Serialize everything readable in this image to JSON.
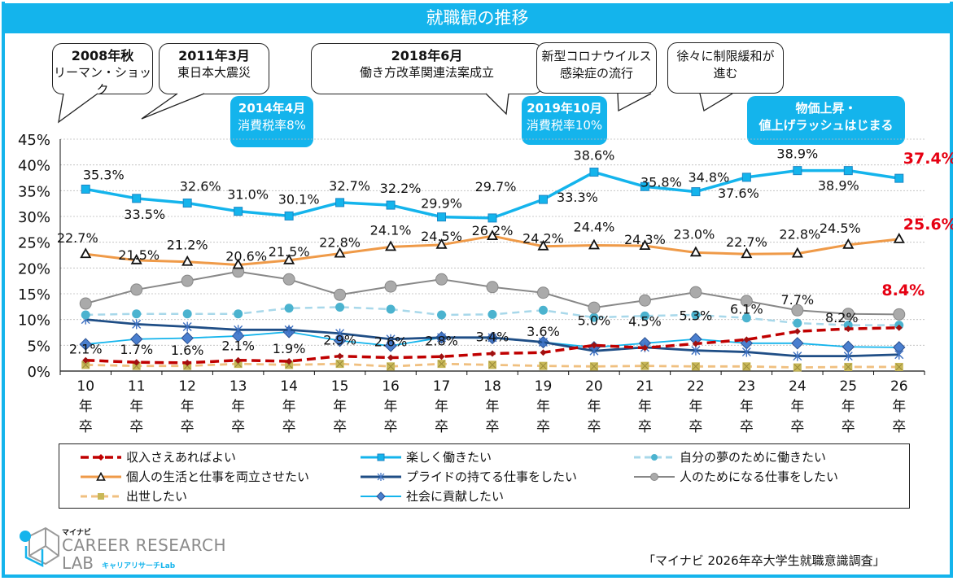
{
  "chart_data": {
    "type": "line",
    "title": "就職観の推移",
    "xlabel": "",
    "ylabel": "",
    "ylim": [
      0,
      45
    ],
    "yticks": [
      "0%",
      "5%",
      "10%",
      "15%",
      "20%",
      "25%",
      "30%",
      "35%",
      "40%",
      "45%"
    ],
    "grid": true,
    "legend_position": "bottom",
    "categories": [
      "10年卒",
      "11年卒",
      "12年卒",
      "13年卒",
      "14年卒",
      "15年卒",
      "16年卒",
      "17年卒",
      "18年卒",
      "19年卒",
      "20年卒",
      "21年卒",
      "22年卒",
      "23年卒",
      "24年卒",
      "25年卒",
      "26年卒"
    ],
    "category_lines": [
      [
        "10",
        "年",
        "卒"
      ],
      [
        "11",
        "年",
        "卒"
      ],
      [
        "12",
        "年",
        "卒"
      ],
      [
        "13",
        "年",
        "卒"
      ],
      [
        "14",
        "年",
        "卒"
      ],
      [
        "15",
        "年",
        "卒"
      ],
      [
        "16",
        "年",
        "卒"
      ],
      [
        "17",
        "年",
        "卒"
      ],
      [
        "18",
        "年",
        "卒"
      ],
      [
        "19",
        "年",
        "卒"
      ],
      [
        "20",
        "年",
        "卒"
      ],
      [
        "21",
        "年",
        "卒"
      ],
      [
        "22",
        "年",
        "卒"
      ],
      [
        "23",
        "年",
        "卒"
      ],
      [
        "24",
        "年",
        "卒"
      ],
      [
        "25",
        "年",
        "卒"
      ],
      [
        "26",
        "年",
        "卒"
      ]
    ],
    "series": [
      {
        "name": "楽しく働きたい",
        "color": "#14b4ec",
        "marker": "square",
        "dash": false,
        "width": 3.5,
        "labeled": true,
        "values": [
          35.3,
          33.5,
          32.6,
          31.0,
          30.1,
          32.7,
          32.2,
          29.9,
          29.7,
          33.3,
          38.6,
          35.8,
          34.8,
          37.6,
          38.9,
          38.9,
          37.4
        ]
      },
      {
        "name": "個人の生活と仕事を両立させたい",
        "color": "#ef9a48",
        "marker": "triangle",
        "dash": false,
        "width": 3,
        "labeled": true,
        "values": [
          22.7,
          21.5,
          21.2,
          20.6,
          21.5,
          22.8,
          24.1,
          24.5,
          26.2,
          24.2,
          24.4,
          24.3,
          23.0,
          22.7,
          22.8,
          24.5,
          25.6
        ]
      },
      {
        "name": "人のためになる仕事をしたい",
        "color": "#888888",
        "marker": "circle",
        "dash": false,
        "width": 2,
        "labeled": false,
        "values": [
          13.1,
          15.8,
          17.5,
          19.3,
          17.8,
          14.8,
          16.4,
          17.8,
          16.3,
          15.2,
          12.3,
          13.7,
          15.3,
          13.6,
          11.8,
          11.1,
          11.0
        ]
      },
      {
        "name": "自分の夢のために働きたい",
        "color": "#a8d8ea",
        "marker_color": "#4bb3cf",
        "marker": "dot",
        "dash": true,
        "width": 2.5,
        "labeled": false,
        "values": [
          10.9,
          11.1,
          11.1,
          11.1,
          12.2,
          12.4,
          12.0,
          10.9,
          11.0,
          11.8,
          10.4,
          10.7,
          10.9,
          10.3,
          9.3,
          8.9,
          8.9
        ]
      },
      {
        "name": "プライドの持てる仕事をしたい",
        "color": "#1f4e86",
        "marker": "asterisk",
        "dash": false,
        "width": 2.8,
        "labeled": false,
        "values": [
          10.0,
          9.1,
          8.6,
          8.0,
          8.0,
          7.3,
          6.2,
          6.5,
          6.5,
          5.6,
          3.9,
          4.6,
          4.0,
          3.7,
          2.9,
          2.9,
          3.2
        ]
      },
      {
        "name": "社会に貢献したい",
        "color": "#14b4ec",
        "marker_color": "#4a7fcf",
        "marker": "diamond",
        "dash": false,
        "width": 1.8,
        "labeled": false,
        "values": [
          5.2,
          6.2,
          6.4,
          6.8,
          7.6,
          5.9,
          4.9,
          6.5,
          6.4,
          5.6,
          4.6,
          5.4,
          6.2,
          5.4,
          5.4,
          4.7,
          4.6
        ]
      },
      {
        "name": "収入さえあればよい",
        "color": "#c00000",
        "marker": "smalldiamond",
        "dash": true,
        "width": 3.5,
        "labeled": true,
        "values": [
          2.1,
          1.7,
          1.6,
          2.1,
          1.9,
          2.9,
          2.6,
          2.8,
          3.4,
          3.6,
          5.0,
          4.5,
          5.3,
          6.1,
          7.7,
          8.2,
          8.4
        ]
      },
      {
        "name": "出世したい",
        "color": "#f0c080",
        "marker_color": "#c8b858",
        "marker": "star",
        "dash": true,
        "width": 2.8,
        "labeled": false,
        "values": [
          1.2,
          1.0,
          1.0,
          1.4,
          1.2,
          1.4,
          0.9,
          1.4,
          1.2,
          1.0,
          0.9,
          1.0,
          0.9,
          0.9,
          0.7,
          0.8,
          0.8
        ]
      }
    ],
    "highlight_labels": {
      "楽しく働きたい": "37.4%",
      "個人の生活と仕事を両立させたい": "25.6%",
      "収入さえあればよい": "8.4%"
    },
    "highlight_color": "#e60012",
    "annotations": [
      {
        "bold": "2008年秋",
        "text": "リーマン・ショック",
        "style": "callout"
      },
      {
        "bold": "2011年3月",
        "text": "東日本大震災",
        "style": "callout"
      },
      {
        "bold": "2018年6月",
        "text": "働き方改革関連法案成立",
        "style": "callout"
      },
      {
        "bold": "",
        "text": "新型コロナウイルス",
        "text2": "感染症の流行",
        "style": "callout"
      },
      {
        "bold": "",
        "text": "徐々に制限緩和が",
        "text2": "進む",
        "style": "callout"
      },
      {
        "bold": "2014年4月",
        "text": "消費税率8%",
        "style": "bluebox"
      },
      {
        "bold": "2019年10月",
        "text": "消費税率10%",
        "style": "bluebox"
      },
      {
        "bold": "物価上昇・",
        "text": "値上げラッシュはじまる",
        "style": "bluebox"
      }
    ]
  },
  "header": {
    "title": "就職観の推移"
  },
  "legend": {
    "items": [
      "収入さえあればよい",
      "楽しく働きたい",
      "自分の夢のために働きたい",
      "個人の生活と仕事を両立させたい",
      "プライドの持てる仕事をしたい",
      "人のためになる仕事をしたい",
      "出世したい",
      "社会に貢献したい"
    ]
  },
  "logo": {
    "top": "マイナビ",
    "line1": "CAREER RESEARCH",
    "line2": "LAB",
    "jp": "キャリアリサーチLab"
  },
  "source": "「マイナビ 2026年卒大学生就職意識調査」",
  "colors": {
    "brand": "#14b4ec",
    "highlight": "#e60012"
  }
}
